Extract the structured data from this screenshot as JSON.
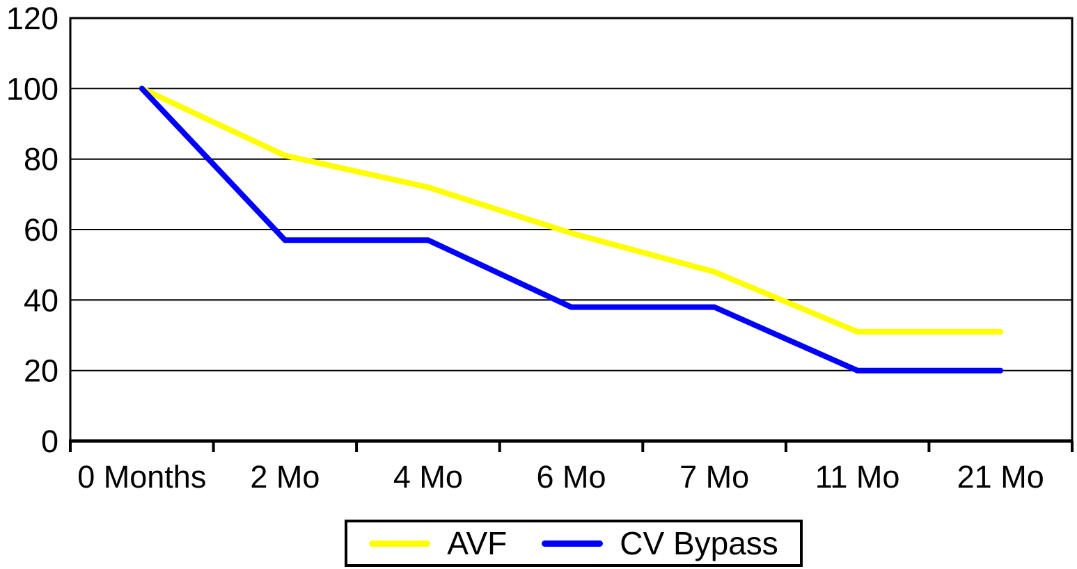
{
  "chart_data": {
    "type": "line",
    "title": "",
    "xlabel": "",
    "ylabel": "",
    "categories": [
      "0 Months",
      "2 Mo",
      "4 Mo",
      "6 Mo",
      "7 Mo",
      "11 Mo",
      "21 Mo"
    ],
    "series": [
      {
        "name": "AVF",
        "color": "#FFFF00",
        "values": [
          100,
          81,
          72,
          59,
          48,
          31,
          31
        ]
      },
      {
        "name": "CV Bypass",
        "color": "#0000FF",
        "values": [
          100,
          57,
          57,
          38,
          38,
          20,
          20
        ]
      }
    ],
    "y_ticks": [
      "0",
      "20",
      "40",
      "60",
      "80",
      "100",
      "120"
    ],
    "ylim": [
      0,
      120
    ],
    "grid": "horizontal",
    "legend_position": "bottom-center",
    "plot_border": true
  },
  "legend": {
    "items": [
      {
        "label": "AVF",
        "color": "#FFFF00"
      },
      {
        "label": "CV Bypass",
        "color": "#0000FF"
      }
    ]
  },
  "colors": {
    "background": "#FFFFFF",
    "axis": "#000000",
    "text": "#000000"
  }
}
